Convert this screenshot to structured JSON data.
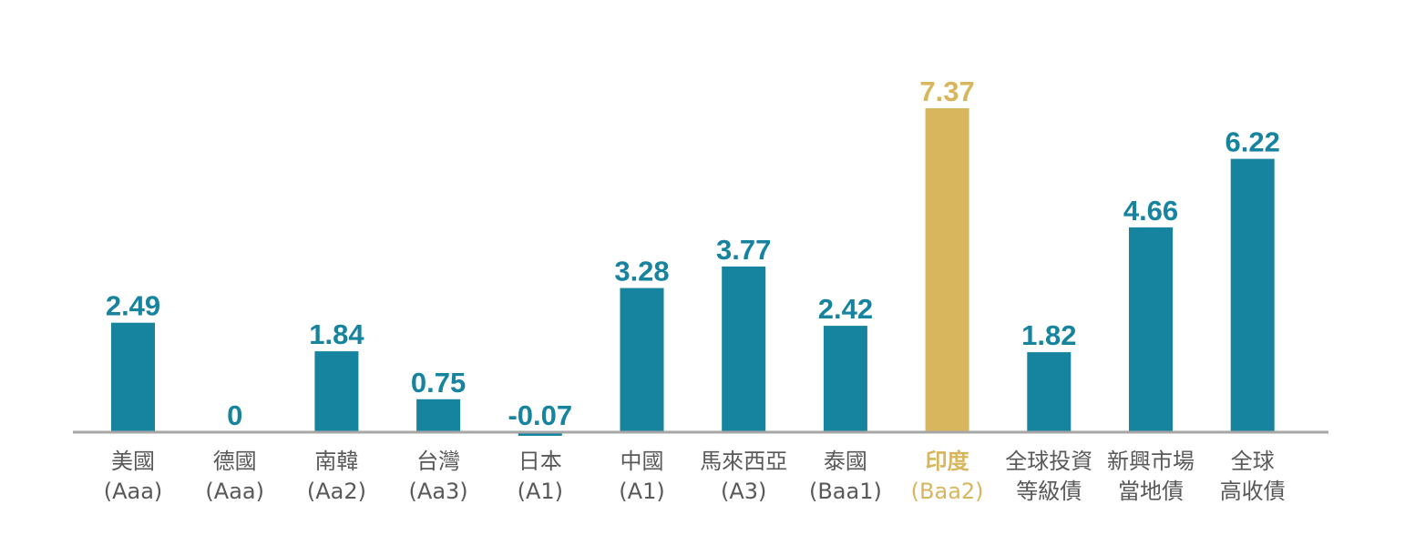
{
  "chart_data": {
    "type": "bar",
    "categories": [
      [
        "美國",
        "(Aaa)"
      ],
      [
        "德國",
        "(Aaa)"
      ],
      [
        "南韓",
        "(Aa2)"
      ],
      [
        "台灣",
        "(Aa3)"
      ],
      [
        "日本",
        "(A1)"
      ],
      [
        "中國",
        "(A1)"
      ],
      [
        "馬來西亞",
        "(A3)"
      ],
      [
        "泰國",
        "(Baa1)"
      ],
      [
        "印度",
        "(Baa2)"
      ],
      [
        "全球投資",
        "等級債"
      ],
      [
        "新興市場",
        "當地債"
      ],
      [
        "全球",
        "高收債"
      ]
    ],
    "values": [
      2.49,
      0,
      1.84,
      0.75,
      -0.07,
      3.28,
      3.77,
      2.42,
      7.37,
      1.82,
      4.66,
      6.22
    ],
    "value_labels": [
      "2.49",
      "0",
      "1.84",
      "0.75",
      "-0.07",
      "3.28",
      "3.77",
      "2.42",
      "7.37",
      "1.82",
      "4.66",
      "6.22"
    ],
    "highlight_index": 8,
    "title": "",
    "xlabel": "",
    "ylabel": "",
    "grid": false,
    "legend": "none"
  },
  "colors": {
    "bar": "#16839f",
    "highlight": "#d8b65e",
    "axis": "#a6a6a6",
    "category_text": "#595959",
    "background": "#ffffff"
  }
}
